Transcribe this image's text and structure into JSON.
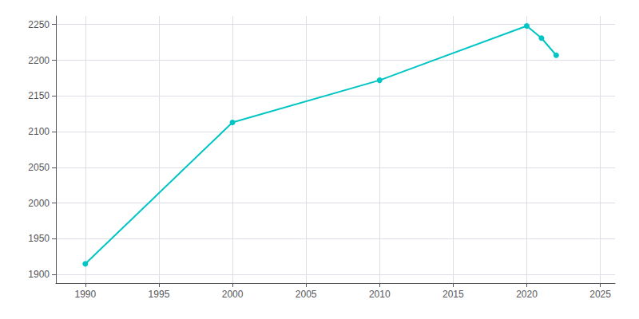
{
  "chart_data": {
    "type": "line",
    "x": [
      1990,
      2000,
      2010,
      2020,
      2021,
      2022
    ],
    "values": [
      1915,
      2113,
      2172,
      2248,
      2231,
      2207
    ],
    "color": "#00C5C5",
    "marker": "circle",
    "xlim": [
      1988,
      2026
    ],
    "ylim": [
      1888,
      2262
    ],
    "xticks": [
      1990,
      1995,
      2000,
      2005,
      2010,
      2015,
      2020,
      2025
    ],
    "yticks": [
      1900,
      1950,
      2000,
      2050,
      2100,
      2150,
      2200,
      2250
    ],
    "grid": true
  }
}
